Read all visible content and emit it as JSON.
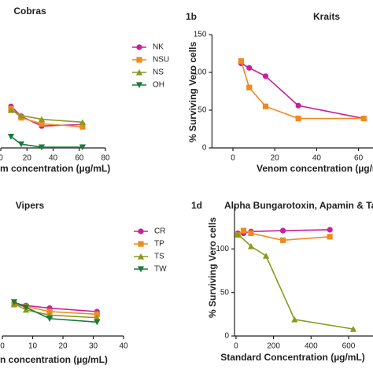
{
  "chart_data": [
    {
      "type": "line",
      "title": "Cobras",
      "x_label": "m concentration (µg/mL)",
      "x": [
        7.8,
        15.6,
        31.25,
        62.5
      ],
      "xlim": [
        0,
        80
      ],
      "xticks": [
        0,
        20,
        40,
        60,
        80
      ],
      "ylim": [
        0,
        150
      ],
      "legend": "right",
      "series": [
        {
          "name": "NK",
          "color": "#c8209a",
          "marker": "circle",
          "values": [
            55,
            42,
            29,
            31
          ]
        },
        {
          "name": "NSU",
          "color": "#f08a1e",
          "marker": "square",
          "values": [
            52,
            40,
            32,
            28
          ]
        },
        {
          "name": "NS",
          "color": "#8a9a1e",
          "marker": "triangle-up",
          "values": [
            50,
            43,
            38,
            34
          ]
        },
        {
          "name": "OH",
          "color": "#1a7a3a",
          "marker": "triangle-down",
          "values": [
            15,
            5,
            1,
            1
          ]
        }
      ]
    },
    {
      "type": "line",
      "panel_label": "1b",
      "title": "Kraits",
      "x_label": "Venom concentration (µg/m",
      "y_label": "% Surviving Vero cells",
      "x": [
        3.9,
        7.8,
        15.6,
        31.25,
        62.5
      ],
      "xlim": [
        -10,
        70
      ],
      "xticks": [
        0,
        20,
        40,
        60
      ],
      "ylim": [
        0,
        150
      ],
      "yticks": [
        0,
        50,
        100,
        150
      ],
      "series": [
        {
          "color": "#c8209a",
          "marker": "circle",
          "values": [
            112,
            106,
            95,
            56,
            39
          ]
        },
        {
          "color": "#f08a1e",
          "marker": "square",
          "values": [
            115,
            80,
            55,
            39,
            39
          ]
        }
      ]
    },
    {
      "type": "line",
      "title": "Vipers",
      "x_label": "n concentration (µg/mL)",
      "x": [
        3.9,
        7.8,
        15.6,
        31.25
      ],
      "xlim": [
        0,
        40
      ],
      "xticks": [
        0,
        10,
        20,
        30,
        40
      ],
      "ylim": [
        0,
        150
      ],
      "legend": "right",
      "series": [
        {
          "name": "CR",
          "color": "#c8209a",
          "marker": "circle",
          "values": [
            38,
            35,
            32,
            28
          ]
        },
        {
          "name": "TP",
          "color": "#f08a1e",
          "marker": "square",
          "values": [
            36,
            34,
            28,
            25
          ]
        },
        {
          "name": "TS",
          "color": "#8a9a1e",
          "marker": "triangle-up",
          "values": [
            37,
            30,
            24,
            21
          ]
        },
        {
          "name": "TW",
          "color": "#1a7a3a",
          "marker": "triangle-down",
          "values": [
            39,
            33,
            20,
            16
          ]
        }
      ]
    },
    {
      "type": "line",
      "panel_label": "1d",
      "title": "Alpha Bungarotoxin, Apamin & Tar",
      "x_label": "Standard Concentration (µg/mL)",
      "y_label": "% Surviving Vero cells",
      "xlim": [
        -8,
        730
      ],
      "xticks": [
        0,
        200,
        400,
        600
      ],
      "ylim": [
        0,
        150
      ],
      "yticks": [
        0,
        50,
        100
      ],
      "series": [
        {
          "color": "#c8209a",
          "marker": "circle",
          "x": [
            10,
            40,
            80,
            250,
            500
          ],
          "values": [
            118,
            118,
            120,
            121,
            122
          ]
        },
        {
          "color": "#f08a1e",
          "marker": "square",
          "x": [
            10,
            40,
            80,
            250,
            500
          ],
          "values": [
            116,
            121,
            118,
            110,
            114
          ]
        },
        {
          "color": "#8a9a1e",
          "marker": "triangle-up",
          "x": [
            10,
            80,
            160,
            312,
            625
          ],
          "values": [
            117,
            103,
            92,
            19,
            8
          ]
        }
      ]
    }
  ]
}
